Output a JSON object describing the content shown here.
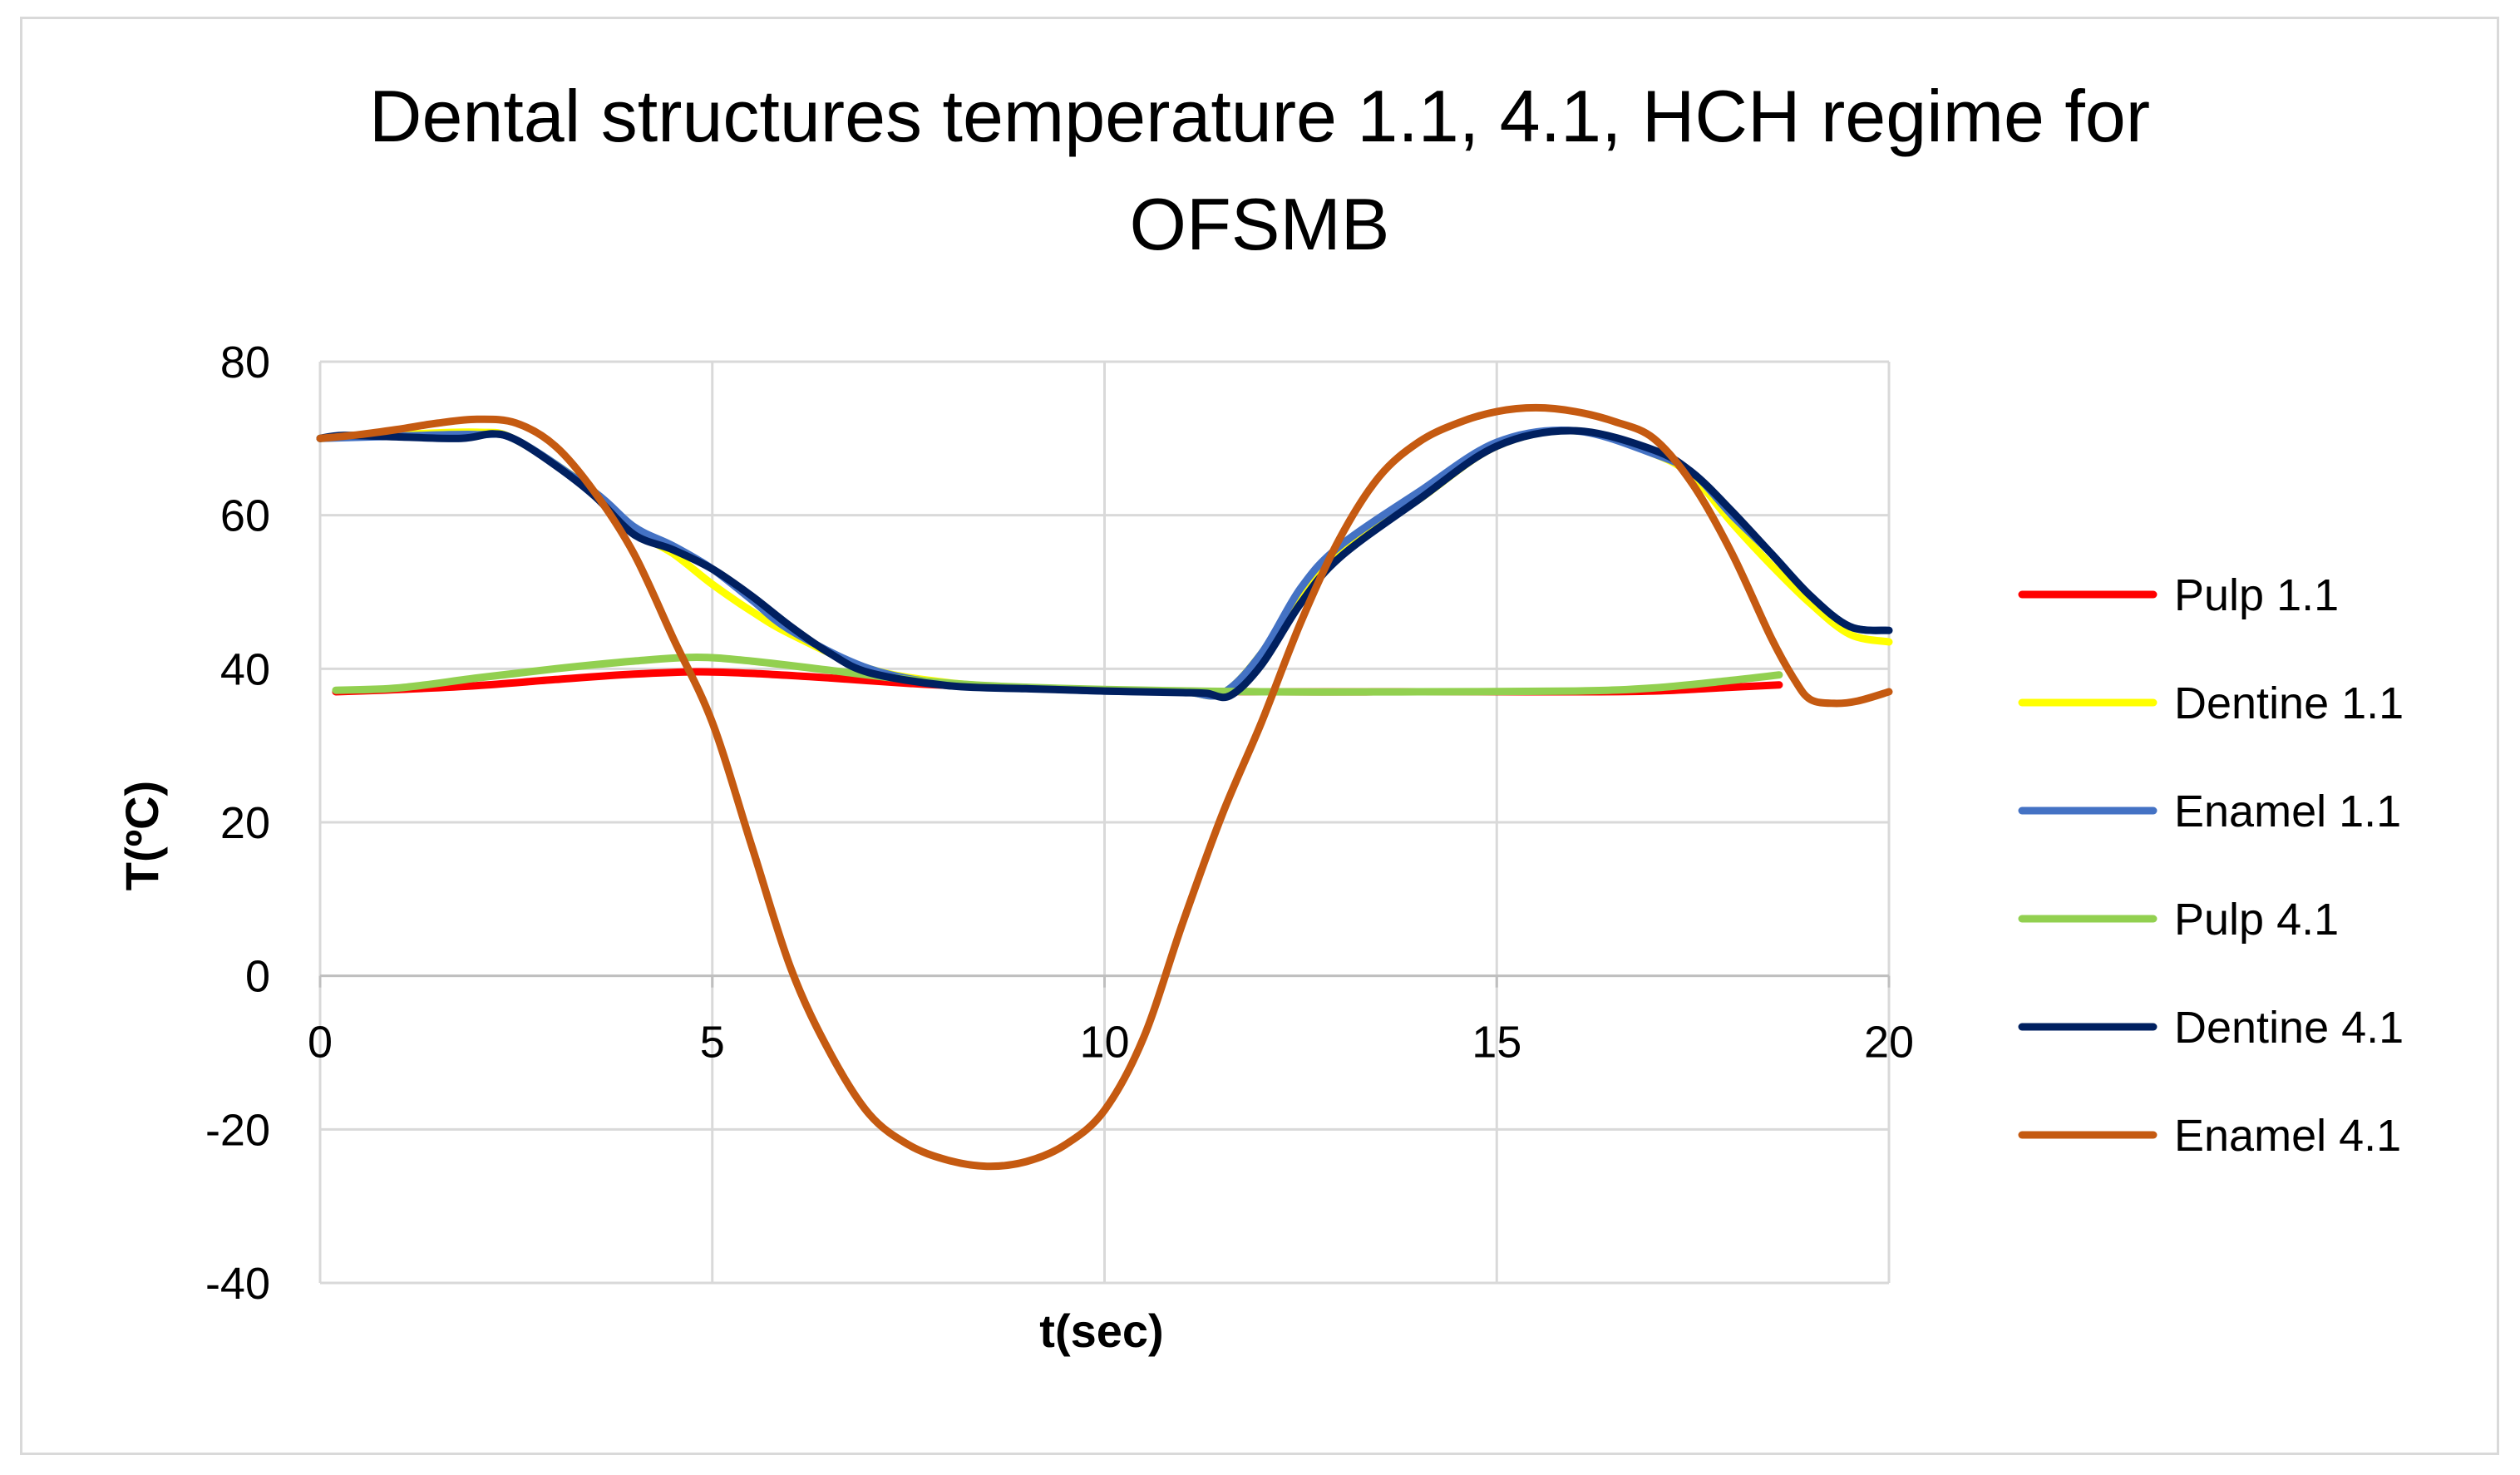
{
  "chart_data": {
    "type": "line",
    "title": "Dental structures temperature 1.1, 4.1, HCH regime for OFSMB",
    "title_lines": [
      "Dental structures temperature 1.1, 4.1, HCH regime for",
      "OFSMB"
    ],
    "xlabel": "t(sec)",
    "ylabel": "T(ºC)",
    "xlim": [
      0,
      20
    ],
    "ylim": [
      -40,
      80
    ],
    "x_ticks": [
      0,
      5,
      10,
      15,
      20
    ],
    "y_ticks": [
      -40,
      -20,
      0,
      20,
      40,
      60,
      80
    ],
    "grid": true,
    "legend_position": "right",
    "series": [
      {
        "name": "Pulp 1.1",
        "color": "#ff0000",
        "points": [
          [
            0.2,
            37
          ],
          [
            1,
            37.3
          ],
          [
            2,
            37.8
          ],
          [
            3,
            38.6
          ],
          [
            4,
            39.3
          ],
          [
            4.8,
            39.6
          ],
          [
            5.5,
            39.4
          ],
          [
            6.5,
            38.8
          ],
          [
            7.5,
            38.1
          ],
          [
            8.5,
            37.6
          ],
          [
            10,
            37.2
          ],
          [
            12,
            37
          ],
          [
            14,
            37
          ],
          [
            16,
            37
          ],
          [
            17,
            37.1
          ],
          [
            18,
            37.6
          ],
          [
            18.6,
            37.9
          ]
        ]
      },
      {
        "name": "Dentine 1.1",
        "color": "#ffff00",
        "points": [
          [
            0,
            70
          ],
          [
            1,
            70.5
          ],
          [
            2,
            70.8
          ],
          [
            2.5,
            69.8
          ],
          [
            3.5,
            63
          ],
          [
            4,
            58
          ],
          [
            4.5,
            55
          ],
          [
            5,
            51
          ],
          [
            5.5,
            47.5
          ],
          [
            6,
            44.5
          ],
          [
            7,
            40
          ],
          [
            8,
            38.2
          ],
          [
            9,
            37.5
          ],
          [
            10,
            37.2
          ],
          [
            11,
            37
          ],
          [
            11.5,
            36.8
          ],
          [
            12,
            42
          ],
          [
            12.5,
            50
          ],
          [
            13,
            55
          ],
          [
            14,
            62
          ],
          [
            15,
            69
          ],
          [
            16,
            71
          ],
          [
            17,
            68
          ],
          [
            17.5,
            65
          ],
          [
            18,
            59
          ],
          [
            18.5,
            53.5
          ],
          [
            19,
            48.5
          ],
          [
            19.5,
            44.5
          ],
          [
            20,
            43.5
          ]
        ]
      },
      {
        "name": "Enamel 1.1",
        "color": "#4472c4",
        "points": [
          [
            0,
            70
          ],
          [
            1,
            70.3
          ],
          [
            2,
            70.5
          ],
          [
            2.5,
            69.8
          ],
          [
            3.5,
            63
          ],
          [
            4,
            58.5
          ],
          [
            4.5,
            56
          ],
          [
            5,
            53
          ],
          [
            5.5,
            49
          ],
          [
            6,
            45
          ],
          [
            7,
            40
          ],
          [
            8,
            38
          ],
          [
            9,
            37.5
          ],
          [
            10,
            37.1
          ],
          [
            11,
            37
          ],
          [
            11.5,
            36.8
          ],
          [
            12,
            42
          ],
          [
            12.5,
            50.5
          ],
          [
            13,
            56
          ],
          [
            14,
            63
          ],
          [
            15,
            69.5
          ],
          [
            16,
            71
          ],
          [
            17,
            68
          ],
          [
            17.5,
            65.5
          ],
          [
            18,
            60
          ],
          [
            18.5,
            55
          ],
          [
            19,
            49.5
          ],
          [
            19.5,
            45.5
          ],
          [
            20,
            45
          ]
        ]
      },
      {
        "name": "Pulp 4.1",
        "color": "#92d050",
        "points": [
          [
            0.2,
            37.2
          ],
          [
            1,
            37.5
          ],
          [
            2,
            38.8
          ],
          [
            3,
            40
          ],
          [
            4,
            41
          ],
          [
            4.8,
            41.5
          ],
          [
            5.5,
            41
          ],
          [
            6.5,
            39.8
          ],
          [
            7.5,
            38.6
          ],
          [
            8.5,
            37.8
          ],
          [
            10,
            37.3
          ],
          [
            12,
            37
          ],
          [
            14,
            37
          ],
          [
            16,
            37.1
          ],
          [
            17,
            37.5
          ],
          [
            18,
            38.5
          ],
          [
            18.6,
            39.2
          ]
        ]
      },
      {
        "name": "Dentine 4.1",
        "color": "#002060",
        "points": [
          [
            0,
            70
          ],
          [
            0.3,
            70.4
          ],
          [
            1,
            70.2
          ],
          [
            1.8,
            70
          ],
          [
            2.2,
            70.6
          ],
          [
            2.5,
            69.8
          ],
          [
            3,
            66.5
          ],
          [
            3.5,
            62.5
          ],
          [
            4,
            57.5
          ],
          [
            4.5,
            55.5
          ],
          [
            5,
            53
          ],
          [
            5.5,
            49.5
          ],
          [
            6,
            45.5
          ],
          [
            6.5,
            42
          ],
          [
            7,
            39.5
          ],
          [
            8,
            37.8
          ],
          [
            9,
            37.4
          ],
          [
            10,
            37.1
          ],
          [
            11,
            36.9
          ],
          [
            11.3,
            36.8
          ],
          [
            11.6,
            36.5
          ],
          [
            12,
            40.5
          ],
          [
            12.5,
            48.5
          ],
          [
            13,
            54.5
          ],
          [
            14,
            62
          ],
          [
            15,
            69
          ],
          [
            16,
            71
          ],
          [
            17,
            68.5
          ],
          [
            17.5,
            65.5
          ],
          [
            18,
            60.5
          ],
          [
            18.5,
            55
          ],
          [
            19,
            49.5
          ],
          [
            19.5,
            45.5
          ],
          [
            20,
            45
          ]
        ]
      },
      {
        "name": "Enamel 4.1",
        "color": "#c55a11",
        "points": [
          [
            0,
            70
          ],
          [
            0.5,
            70.5
          ],
          [
            1,
            71.2
          ],
          [
            1.5,
            72
          ],
          [
            2,
            72.5
          ],
          [
            2.5,
            72
          ],
          [
            3,
            69
          ],
          [
            3.5,
            63
          ],
          [
            4,
            55
          ],
          [
            4.5,
            44
          ],
          [
            5,
            33
          ],
          [
            5.5,
            17
          ],
          [
            6,
            1
          ],
          [
            6.5,
            -10
          ],
          [
            7,
            -18
          ],
          [
            7.5,
            -22
          ],
          [
            8,
            -24
          ],
          [
            8.5,
            -24.8
          ],
          [
            9,
            -24.2
          ],
          [
            9.5,
            -22
          ],
          [
            10,
            -17.5
          ],
          [
            10.5,
            -8
          ],
          [
            11,
            7
          ],
          [
            11.5,
            21
          ],
          [
            12,
            33
          ],
          [
            12.5,
            46
          ],
          [
            13,
            57
          ],
          [
            13.5,
            65
          ],
          [
            14,
            69.5
          ],
          [
            14.5,
            72
          ],
          [
            15,
            73.5
          ],
          [
            15.5,
            74
          ],
          [
            16,
            73.5
          ],
          [
            16.5,
            72.2
          ],
          [
            17,
            70
          ],
          [
            17.5,
            64
          ],
          [
            18,
            55
          ],
          [
            18.5,
            44
          ],
          [
            18.8,
            38.5
          ],
          [
            19,
            36
          ],
          [
            19.3,
            35.5
          ],
          [
            19.6,
            35.8
          ],
          [
            20,
            37
          ]
        ]
      }
    ]
  }
}
